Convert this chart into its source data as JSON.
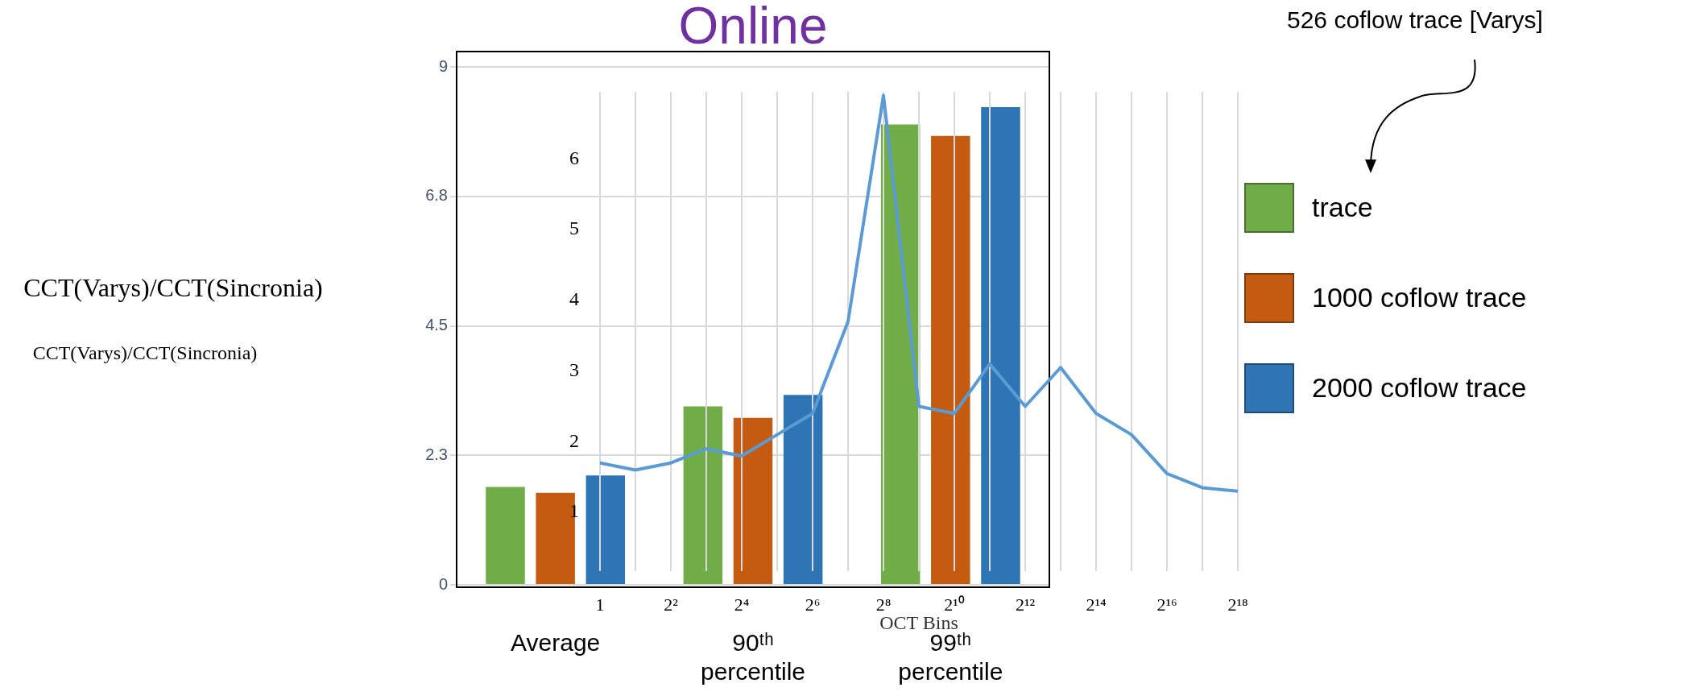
{
  "chart_data": [
    {
      "type": "bar",
      "title": "Online",
      "ylabel": "CCT(Varys)/CCT(Sincronia)",
      "categories": [
        "Average",
        "90ᵗʰ percentile",
        "99ᵗʰ percentile"
      ],
      "series": [
        {
          "name": "trace",
          "color": "#70ad47",
          "values": [
            1.7,
            3.1,
            8.0
          ]
        },
        {
          "name": "1000 coflow trace",
          "color": "#c55a11",
          "values": [
            1.6,
            2.9,
            7.8
          ]
        },
        {
          "name": "2000 coflow trace",
          "color": "#2e75b6",
          "values": [
            1.9,
            3.3,
            8.3
          ]
        }
      ],
      "ylim": [
        0,
        9
      ],
      "yticks": [
        0,
        {
          "value": 2.25,
          "label": "2.3"
        },
        4.5,
        {
          "value": 6.75,
          "label": "6.8"
        },
        9
      ],
      "grid": "y",
      "legend": "right"
    },
    {
      "type": "line",
      "xlabel": "OCT Bins",
      "ylabel": "CCT(Varys)/CCT(Sincronia)",
      "annotations": [
        "526 coflow trace [Varys]"
      ],
      "x": [
        1,
        2,
        4,
        8,
        16,
        32,
        64,
        128,
        256,
        512,
        1024,
        2048,
        4096,
        8192,
        16384,
        32768,
        65536,
        131072,
        262144
      ],
      "series": [
        {
          "color": "#5b9bd5",
          "values": [
            1.7,
            1.6,
            1.7,
            1.9,
            1.8,
            2.1,
            2.4,
            3.7,
            6.9,
            2.5,
            2.4,
            3.1,
            2.5,
            3.05,
            2.4,
            2.1,
            1.55,
            1.35,
            1.3
          ]
        }
      ],
      "xlim": [
        1,
        262144
      ],
      "xticks": [
        1,
        {
          "value": 2,
          "label": null
        },
        {
          "value": 4,
          "label": "2²"
        },
        {
          "value": 8,
          "label": null
        },
        {
          "value": 16,
          "label": "2⁴"
        },
        {
          "value": 32,
          "label": null
        },
        {
          "value": 64,
          "label": "2⁶"
        },
        {
          "value": 128,
          "label": null
        },
        {
          "value": 256,
          "label": "2⁸"
        },
        {
          "value": 512,
          "label": null
        },
        {
          "value": 1024,
          "label": "2¹⁰"
        },
        {
          "value": 2048,
          "label": null
        },
        {
          "value": 4096,
          "label": "2¹²"
        },
        {
          "value": 8192,
          "label": null
        },
        {
          "value": 16384,
          "label": "2¹⁴"
        },
        {
          "value": 32768,
          "label": null
        },
        {
          "value": 65536,
          "label": "2¹⁶"
        },
        {
          "value": 131072,
          "label": null
        },
        {
          "value": 262144,
          "label": "2¹⁸"
        }
      ],
      "ylim": [
        0.17,
        6.95
      ],
      "yticks": [
        1,
        2,
        3,
        4,
        5,
        6
      ],
      "log": "x",
      "grid": "x",
      "marker": "none",
      "line_style": "solid"
    }
  ]
}
